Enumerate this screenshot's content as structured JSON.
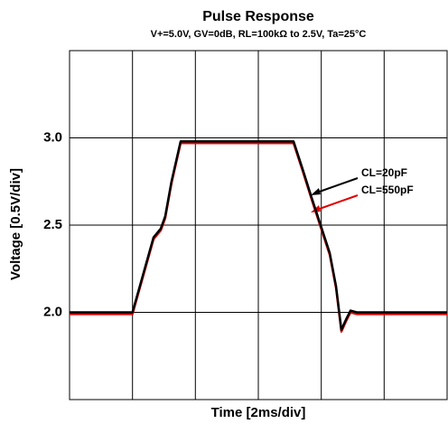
{
  "chart_data": {
    "type": "line",
    "title": "Pulse Response",
    "subtitle": "V+=5.0V, GV=0dB, RL=100kΩ to 2.5V, Ta=25°C",
    "x_label": "Time [2ms/div]",
    "y_label": "Voltage [0.5V/div]",
    "x": [
      0,
      2.0,
      2.67,
      2.9,
      3.04,
      3.24,
      3.53,
      3.67,
      7.12,
      7.41,
      7.69,
      7.98,
      8.27,
      8.47,
      8.64,
      8.79,
      8.93,
      9.13,
      12
    ],
    "series": [
      {
        "name": "CL=20pF",
        "color": "#000000",
        "values": [
          2.0,
          2.0,
          2.43,
          2.48,
          2.55,
          2.75,
          2.98,
          2.98,
          2.98,
          2.82,
          2.66,
          2.5,
          2.34,
          2.15,
          1.9,
          1.96,
          2.01,
          2.0,
          2.0
        ]
      },
      {
        "name": "CL=550pF",
        "color": "#e00000",
        "values": [
          1.99,
          1.99,
          2.42,
          2.47,
          2.54,
          2.74,
          2.97,
          2.97,
          2.97,
          2.81,
          2.65,
          2.49,
          2.33,
          2.14,
          1.89,
          1.95,
          2.0,
          1.99,
          1.99
        ]
      }
    ],
    "xlim": [
      0,
      12
    ],
    "ylim": [
      1.5,
      3.5
    ],
    "yticks": [
      {
        "value": 2,
        "label": "2.0"
      },
      {
        "value": 2.5,
        "label": "2.5"
      },
      {
        "value": 3,
        "label": "3.0"
      }
    ],
    "grid": true
  }
}
